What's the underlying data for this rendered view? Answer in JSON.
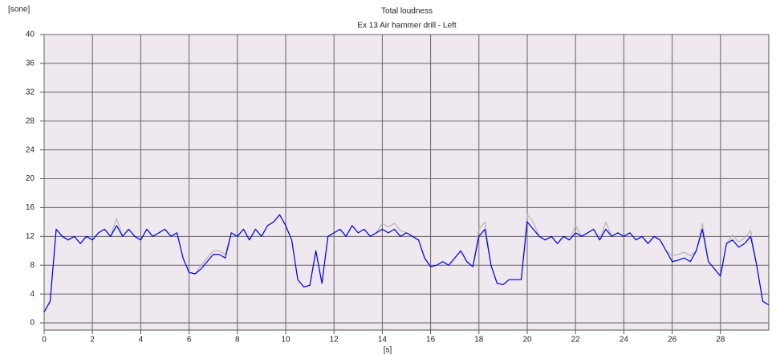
{
  "chart_data": {
    "type": "line",
    "title": "Total loudness",
    "subtitle": "Ex 13 Air hammer drill - Left",
    "ylabel": "[sone]",
    "xlabel": "[s]",
    "x": [
      0,
      0.25,
      0.5,
      0.75,
      1,
      1.25,
      1.5,
      1.75,
      2,
      2.25,
      2.5,
      2.75,
      3,
      3.25,
      3.5,
      3.75,
      4,
      4.25,
      4.5,
      4.75,
      5,
      5.25,
      5.5,
      5.75,
      6,
      6.25,
      6.5,
      6.75,
      7,
      7.25,
      7.5,
      7.75,
      8,
      8.25,
      8.5,
      8.75,
      9,
      9.25,
      9.5,
      9.75,
      10,
      10.25,
      10.5,
      10.75,
      11,
      11.25,
      11.5,
      11.75,
      12,
      12.25,
      12.5,
      12.75,
      13,
      13.25,
      13.5,
      13.75,
      14,
      14.25,
      14.5,
      14.75,
      15,
      15.25,
      15.5,
      15.75,
      16,
      16.25,
      16.5,
      16.75,
      17,
      17.25,
      17.5,
      17.75,
      18,
      18.25,
      18.5,
      18.75,
      19,
      19.25,
      19.5,
      19.75,
      20,
      20.25,
      20.5,
      20.75,
      21,
      21.25,
      21.5,
      21.75,
      22,
      22.25,
      22.5,
      22.75,
      23,
      23.25,
      23.5,
      23.75,
      24,
      24.25,
      24.5,
      24.75,
      25,
      25.25,
      25.5,
      25.75,
      26,
      26.25,
      26.5,
      26.75,
      27,
      27.25,
      27.5,
      27.75,
      28,
      28.25,
      28.5,
      28.75,
      29,
      29.25,
      29.5,
      29.75,
      30
    ],
    "series": [
      {
        "color": "#b4b4b4",
        "values": [
          1.5,
          3,
          13,
          12,
          11.5,
          12,
          11,
          12,
          11.5,
          12.5,
          13,
          12,
          14.5,
          12,
          13,
          12,
          11.5,
          13,
          12,
          12.5,
          13,
          12,
          12.5,
          9,
          7,
          6.8,
          8,
          9,
          10,
          10,
          9.5,
          12.5,
          12,
          13,
          11.5,
          13,
          12,
          13.5,
          14,
          15,
          13.5,
          11.5,
          6,
          5,
          5.2,
          10,
          5.5,
          12,
          12.5,
          13,
          12,
          13.5,
          12.5,
          13,
          12,
          12.5,
          13.8,
          13.3,
          13.8,
          12.8,
          12.5,
          12,
          11.5,
          9,
          7.8,
          8,
          8.5,
          8,
          9,
          10,
          8.5,
          7.8,
          13,
          14,
          8,
          5.5,
          5.3,
          6,
          6,
          6,
          15,
          14,
          12,
          11.5,
          12,
          11,
          12,
          11.5,
          13.5,
          12,
          12.5,
          13,
          11.5,
          14,
          12,
          12.5,
          12,
          12.5,
          11.5,
          12,
          11,
          12,
          11.5,
          10,
          9.3,
          9.5,
          9.8,
          9.3,
          10,
          13.8,
          8.5,
          7.5,
          6.5,
          11,
          12.2,
          11.2,
          11.8,
          12.8,
          8,
          3,
          2.5
        ]
      },
      {
        "color": "#0000ee",
        "values": [
          1.5,
          3,
          13,
          12,
          11.5,
          12,
          11,
          12,
          11.5,
          12.5,
          13,
          12,
          13.5,
          12,
          13,
          12,
          11.5,
          13,
          12,
          12.5,
          13,
          12,
          12.5,
          9,
          7,
          6.8,
          7.5,
          8.5,
          9.5,
          9.5,
          9,
          12.5,
          12,
          13,
          11.5,
          13,
          12,
          13.5,
          14,
          15,
          13.5,
          11.5,
          6,
          5,
          5.2,
          10,
          5.5,
          12,
          12.5,
          13,
          12,
          13.5,
          12.5,
          13,
          12,
          12.5,
          13,
          12.5,
          13,
          12,
          12.5,
          12,
          11.5,
          9,
          7.8,
          8,
          8.5,
          8,
          9,
          10,
          8.5,
          7.8,
          12,
          13,
          8,
          5.5,
          5.3,
          6,
          6,
          6,
          14,
          13,
          12,
          11.5,
          12,
          11,
          12,
          11.5,
          12.5,
          12,
          12.5,
          13,
          11.5,
          13,
          12,
          12.5,
          12,
          12.5,
          11.5,
          12,
          11,
          12,
          11.5,
          10,
          8.5,
          8.7,
          9,
          8.5,
          10,
          13,
          8.5,
          7.5,
          6.5,
          11,
          11.5,
          10.5,
          11,
          12,
          8,
          3,
          2.5
        ]
      }
    ],
    "xlim": [
      0,
      30
    ],
    "xticks": [
      0,
      2,
      4,
      6,
      8,
      10,
      12,
      14,
      16,
      18,
      20,
      22,
      24,
      26,
      28
    ],
    "ylim": [
      -1,
      40
    ],
    "yticks": [
      0,
      4,
      8,
      12,
      16,
      20,
      24,
      28,
      32,
      36,
      40
    ],
    "grid": true
  }
}
